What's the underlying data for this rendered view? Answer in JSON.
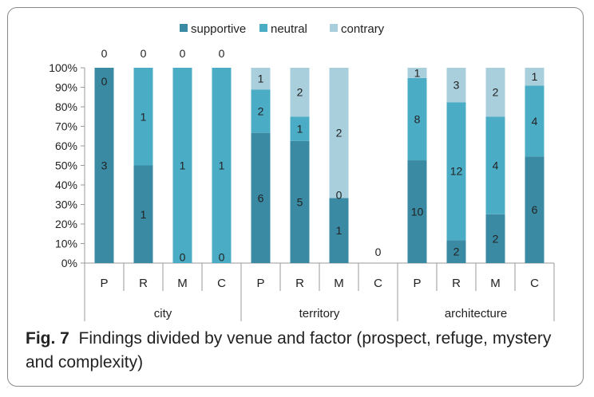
{
  "chart_data": {
    "type": "bar",
    "stacked": true,
    "percent_stacked": true,
    "groups": [
      {
        "label": "city",
        "categories": [
          "P",
          "R",
          "M",
          "C"
        ]
      },
      {
        "label": "territory",
        "categories": [
          "P",
          "R",
          "M",
          "C"
        ]
      },
      {
        "label": "architecture",
        "categories": [
          "P",
          "R",
          "M",
          "C"
        ]
      }
    ],
    "categories": [
      "P",
      "R",
      "M",
      "C",
      "P",
      "R",
      "M",
      "C",
      "P",
      "R",
      "M",
      "C"
    ],
    "series": [
      {
        "name": "supportive",
        "color": "#3a8aa3",
        "values": [
          3,
          1,
          0,
          0,
          6,
          5,
          1,
          0,
          10,
          2,
          2,
          6
        ]
      },
      {
        "name": "neutral",
        "color": "#4bacc6",
        "values": [
          0,
          1,
          1,
          1,
          2,
          1,
          0,
          0,
          8,
          12,
          4,
          4
        ]
      },
      {
        "name": "contrary",
        "color": "#a9cfdd",
        "values": [
          0,
          0,
          0,
          0,
          1,
          2,
          2,
          0,
          1,
          3,
          2,
          1
        ]
      }
    ],
    "ytick_labels": [
      "0%",
      "10%",
      "20%",
      "30%",
      "40%",
      "50%",
      "60%",
      "70%",
      "80%",
      "90%",
      "100%"
    ],
    "ylim": [
      0,
      100
    ],
    "legend_position": "top",
    "grid": false
  },
  "caption": {
    "label": "Fig. 7",
    "text": "Findings divided by venue and factor (prospect, refuge, mystery and complexity)"
  }
}
